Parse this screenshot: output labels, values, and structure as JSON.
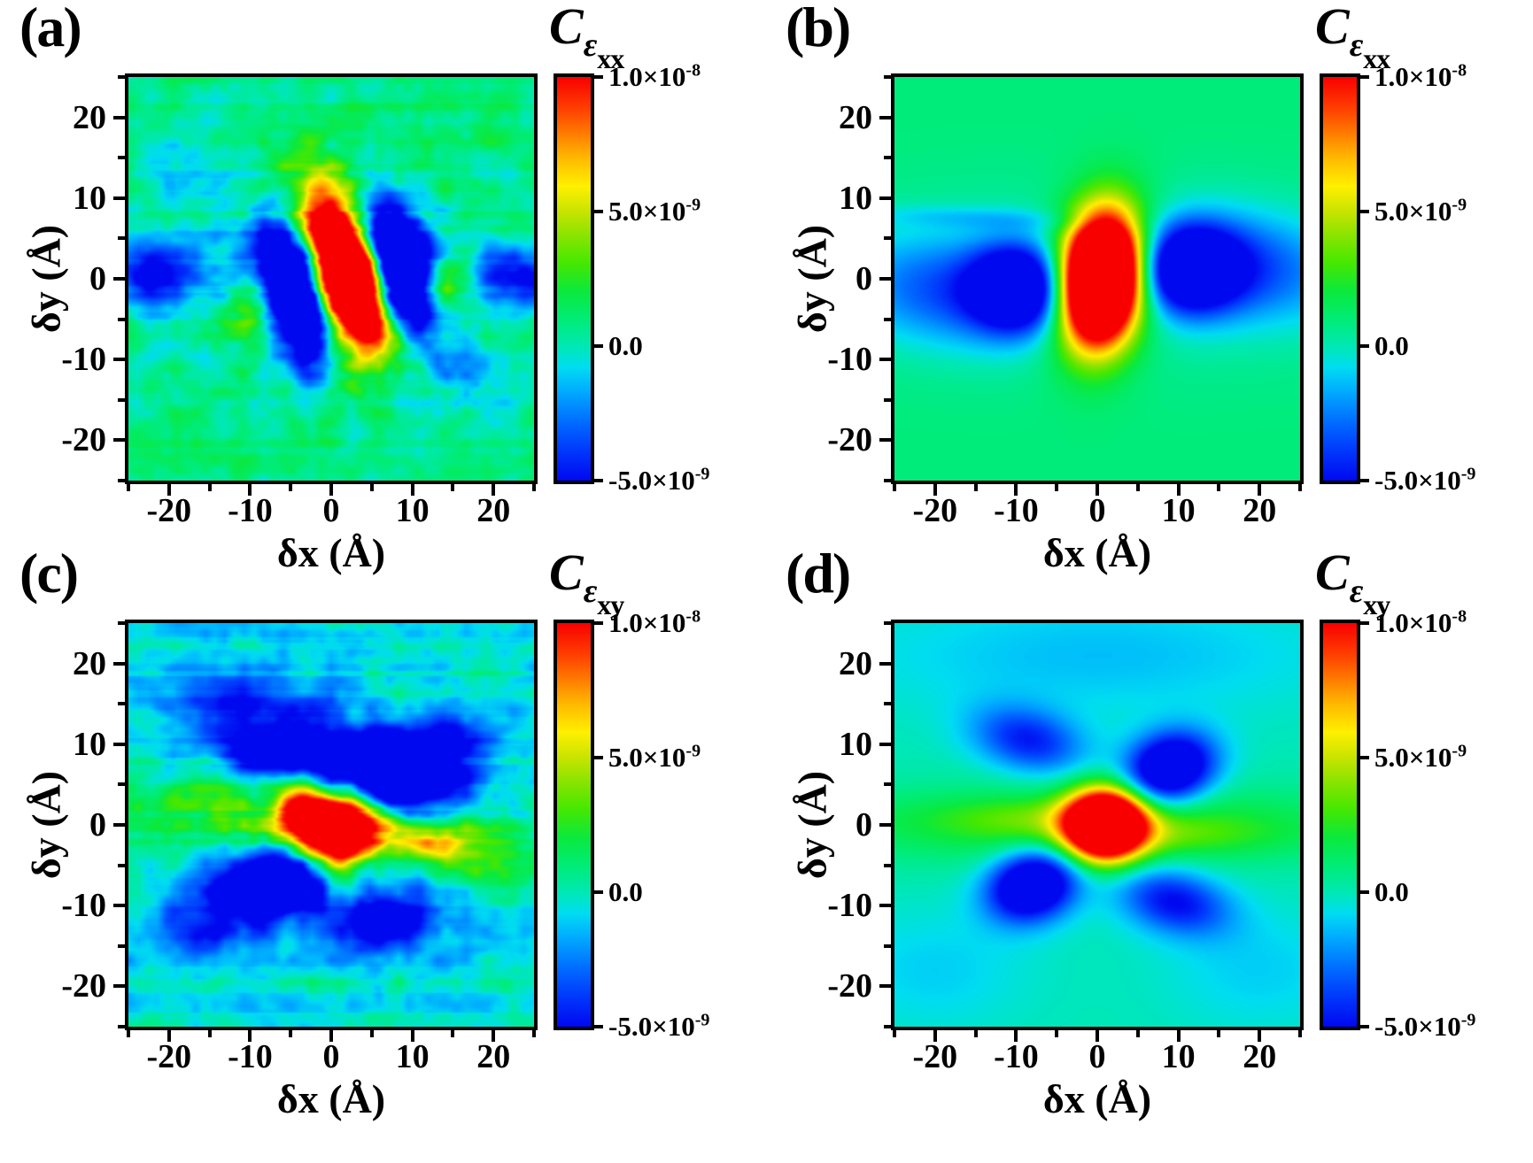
{
  "chart_data": {
    "type": "heatmap",
    "axes": {
      "xlabel": "δx (Å)",
      "ylabel": "δy (Å)",
      "xlim": [
        -25,
        25
      ],
      "ylim": [
        -25,
        25
      ],
      "major_ticks": [
        -20,
        -10,
        0,
        10,
        20
      ],
      "minor_ticks": [
        -25,
        -15,
        -5,
        5,
        15,
        25
      ],
      "x_tick_labels": [
        "-20",
        "-10",
        "0",
        "10",
        "20"
      ],
      "y_tick_labels": [
        "20",
        "10",
        "0",
        "-10",
        "-20"
      ]
    },
    "colorbar": {
      "vmin_e9": -5,
      "vmax_e9": 10,
      "ticks": [
        {
          "mantissa": "1.0×10",
          "exponent": "-8",
          "pos": 0
        },
        {
          "mantissa": "5.0×10",
          "exponent": "-9",
          "pos": 0.3333
        },
        {
          "mantissa": "0.0",
          "exponent": "",
          "pos": 0.6667
        },
        {
          "mantissa": "-5.0×10",
          "exponent": "-9",
          "pos": 1
        }
      ]
    },
    "colormap": [
      {
        "t": 0.0,
        "c": "#0008F0"
      },
      {
        "t": 0.075,
        "c": "#0038FC"
      },
      {
        "t": 0.15,
        "c": "#0070FF"
      },
      {
        "t": 0.22,
        "c": "#00AAFF"
      },
      {
        "t": 0.28,
        "c": "#00DCF2"
      },
      {
        "t": 0.333,
        "c": "#00E8B4"
      },
      {
        "t": 0.4,
        "c": "#00EC76"
      },
      {
        "t": 0.47,
        "c": "#0BE93C"
      },
      {
        "t": 0.54,
        "c": "#46E800"
      },
      {
        "t": 0.61,
        "c": "#8CE400"
      },
      {
        "t": 0.667,
        "c": "#C8E400"
      },
      {
        "t": 0.73,
        "c": "#FFF000"
      },
      {
        "t": 0.8,
        "c": "#FFB800"
      },
      {
        "t": 0.86,
        "c": "#FF7C00"
      },
      {
        "t": 0.92,
        "c": "#FF4000"
      },
      {
        "t": 1.0,
        "c": "#F80000"
      }
    ],
    "value_units_e9": "all field amplitudes in units of 1e-9",
    "panels": [
      {
        "id": "a",
        "label": "(a)",
        "colorbar_title": {
          "base": "C",
          "sub": "ε",
          "subsub": "xx"
        },
        "background": 0.85,
        "noise": {
          "seed": 7,
          "amp": 0.9,
          "row": 0.35,
          "boost": 1.5
        },
        "gaussians": [
          {
            "a": 22,
            "x": 2.2,
            "y": 0.5,
            "sx": 2.4,
            "sy": 6.0,
            "rot": 17
          },
          {
            "a": 6,
            "x": 2.0,
            "y": 0.8,
            "sx": 3.6,
            "sy": 7.4,
            "rot": 17
          },
          {
            "a": -16,
            "x": -4.5,
            "y": -2.0,
            "sx": 2.8,
            "sy": 5.8,
            "rot": 17
          },
          {
            "a": -16,
            "x": 8.2,
            "y": 1.8,
            "sx": 3.0,
            "sy": 5.8,
            "rot": 17
          },
          {
            "a": -7,
            "x": -21.5,
            "y": 0.5,
            "sx": 4.5,
            "sy": 3.0,
            "rot": 0
          },
          {
            "a": -6,
            "x": 22.5,
            "y": 0.0,
            "sx": 4.0,
            "sy": 2.8,
            "rot": 0
          },
          {
            "a": 5.5,
            "x": -9.0,
            "y": -3.0,
            "sx": 2.0,
            "sy": 2.4,
            "rot": 0
          },
          {
            "a": 5,
            "x": 13.5,
            "y": -0.5,
            "sx": 2.2,
            "sy": 2.2,
            "rot": 0
          },
          {
            "a": -2,
            "x": -16,
            "y": 12,
            "sx": 6.0,
            "sy": 3.5,
            "rot": 0
          },
          {
            "a": -2,
            "x": 17,
            "y": -12,
            "sx": 6.0,
            "sy": 3.5,
            "rot": 0
          }
        ]
      },
      {
        "id": "b",
        "label": "(b)",
        "colorbar_title": {
          "base": "C",
          "sub": "ε",
          "subsub": "xx"
        },
        "background": 1.0,
        "noise": null,
        "gaussians": [
          {
            "a": 22,
            "x": 0.5,
            "y": 0.0,
            "sx": 3.1,
            "sy": 5.2,
            "rot": -7
          },
          {
            "a": 5,
            "x": 0.5,
            "y": 0.0,
            "sx": 4.4,
            "sy": 6.6,
            "rot": -7
          },
          {
            "a": -9.5,
            "x": -9.8,
            "y": -1.2,
            "sx": 4.0,
            "sy": 3.6,
            "rot": 0
          },
          {
            "a": -9.5,
            "x": 11.5,
            "y": 1.2,
            "sx": 4.2,
            "sy": 3.6,
            "rot": 0
          },
          {
            "a": -3.5,
            "x": -19,
            "y": -1.5,
            "sx": 8.0,
            "sy": 4.6,
            "rot": -7
          },
          {
            "a": -3.5,
            "x": 19,
            "y": 1.5,
            "sx": 8.0,
            "sy": 4.6,
            "rot": -7
          },
          {
            "a": -1.2,
            "x": 0,
            "y": 0,
            "sx": 26.0,
            "sy": 8.0,
            "rot": 0
          },
          {
            "a": -1.3,
            "x": -14,
            "y": 7.5,
            "sx": 11.0,
            "sy": 1.0,
            "rot": -2
          }
        ]
      },
      {
        "id": "c",
        "label": "(c)",
        "colorbar_title": {
          "base": "C",
          "sub": "ε",
          "subsub": "xy"
        },
        "background": -0.5,
        "noise": {
          "seed": 13,
          "amp": 0.95,
          "row": 0.45,
          "boost": 0.9
        },
        "gaussians": [
          {
            "a": 20,
            "x": 0.5,
            "y": 0.0,
            "sx": 4.4,
            "sy": 2.4,
            "rot": 0
          },
          {
            "a": 7,
            "x": 1.0,
            "y": -3.8,
            "sx": 1.7,
            "sy": 2.4,
            "rot": 0
          },
          {
            "a": 6,
            "x": -4.0,
            "y": 2.5,
            "sx": 1.7,
            "sy": 1.9,
            "rot": 0
          },
          {
            "a": 5,
            "x": 12.5,
            "y": -2.2,
            "sx": 3.4,
            "sy": 1.7,
            "rot": 0
          },
          {
            "a": 3.5,
            "x": -17,
            "y": 2.0,
            "sx": 6.5,
            "sy": 3.5,
            "rot": 0
          },
          {
            "a": 3,
            "x": 18,
            "y": -3.0,
            "sx": 6.0,
            "sy": 3.0,
            "rot": 0
          },
          {
            "a": -12,
            "x": 9,
            "y": 6.0,
            "sx": 5.0,
            "sy": 3.0,
            "rot": 5
          },
          {
            "a": -9,
            "x": -4,
            "y": 9.5,
            "sx": 6.5,
            "sy": 2.2,
            "rot": 0
          },
          {
            "a": -11,
            "x": -7.5,
            "y": -7.5,
            "sx": 4.8,
            "sy": 2.8,
            "rot": 6
          },
          {
            "a": -7,
            "x": 6.5,
            "y": -11.5,
            "sx": 4.6,
            "sy": 2.6,
            "rot": 0
          },
          {
            "a": -4,
            "x": -10,
            "y": 15,
            "sx": 7.0,
            "sy": 2.5,
            "rot": 0
          },
          {
            "a": -4,
            "x": 15,
            "y": 11,
            "sx": 4.5,
            "sy": 2.5,
            "rot": 0
          },
          {
            "a": -3,
            "x": -16,
            "y": -13,
            "sx": 5.0,
            "sy": 2.5,
            "rot": 0
          }
        ]
      },
      {
        "id": "d",
        "label": "(d)",
        "colorbar_title": {
          "base": "C",
          "sub": "ε",
          "subsub": "xy"
        },
        "background": 0.0,
        "noise": null,
        "gaussians": [
          {
            "a": 2.4,
            "x": 0,
            "y": 0,
            "sx": 26.0,
            "sy": 3.4,
            "rot": 0
          },
          {
            "a": 1.6,
            "x": -7,
            "y": 0.8,
            "sx": 9.0,
            "sy": 1.8,
            "rot": 0
          },
          {
            "a": 1.6,
            "x": 8,
            "y": -1.2,
            "sx": 9.0,
            "sy": 1.8,
            "rot": 0
          },
          {
            "a": 20,
            "x": 1,
            "y": 0,
            "sx": 3.3,
            "sy": 2.9,
            "rot": 0
          },
          {
            "a": -9,
            "x": 9,
            "y": 7,
            "sx": 3.8,
            "sy": 2.9,
            "rot": 18
          },
          {
            "a": -9,
            "x": -8,
            "y": -7.5,
            "sx": 3.8,
            "sy": 2.9,
            "rot": 18
          },
          {
            "a": -4.5,
            "x": -8.5,
            "y": 10.5,
            "sx": 4.8,
            "sy": 2.7,
            "rot": -14
          },
          {
            "a": -5,
            "x": 9.5,
            "y": -9.5,
            "sx": 4.8,
            "sy": 2.7,
            "rot": -14
          },
          {
            "a": -1.3,
            "x": 0,
            "y": 21,
            "sx": 20.0,
            "sy": 5.0,
            "rot": 0
          },
          {
            "a": -1.0,
            "x": -20,
            "y": -18,
            "sx": 8.0,
            "sy": 5.0,
            "rot": 0
          },
          {
            "a": -1.0,
            "x": 20,
            "y": -18,
            "sx": 8.0,
            "sy": 5.0,
            "rot": 0
          }
        ]
      }
    ]
  }
}
